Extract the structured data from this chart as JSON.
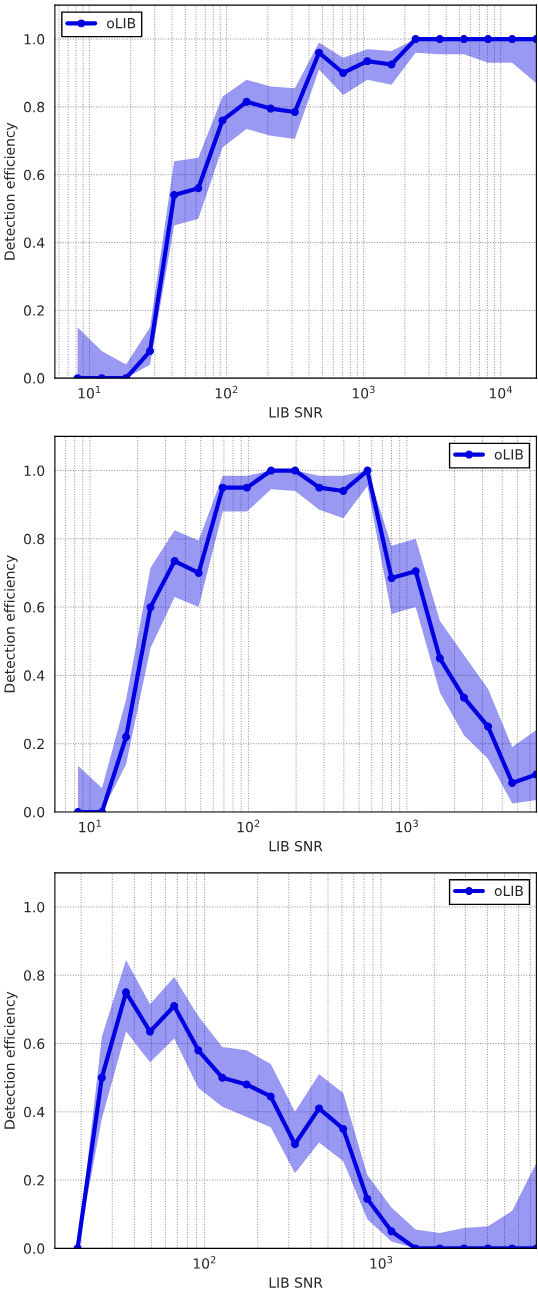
{
  "chart_data": [
    {
      "type": "line",
      "xlabel": "LIB SNR",
      "ylabel": "Detection efficiency",
      "log": "x",
      "grid": true,
      "legend": "top left",
      "marker": "circle",
      "x": [
        8.2,
        12.3,
        18.5,
        27.7,
        41.5,
        62.3,
        93.4,
        140,
        210,
        315,
        473,
        709,
        1064,
        1596,
        2394,
        3591,
        5387,
        8080,
        12120,
        18180
      ],
      "xlim": [
        5.6,
        18200
      ],
      "xticks": [
        {
          "value": 10,
          "label": "10$^{1}$"
        },
        {
          "value": 100,
          "label": "10$^{2}$"
        },
        {
          "value": 1000,
          "label": "10$^{3}$"
        },
        {
          "value": 10000,
          "label": "10$^{4}$"
        }
      ],
      "ylim": [
        0,
        1.1
      ],
      "yticks": [
        {
          "value": 0,
          "label": "0.0"
        },
        {
          "value": 0.2,
          "label": "0.2"
        },
        {
          "value": 0.4,
          "label": "0.4"
        },
        {
          "value": 0.6,
          "label": "0.6"
        },
        {
          "value": 0.8,
          "label": "0.8"
        },
        {
          "value": 1.0,
          "label": "1.0"
        }
      ],
      "series": [
        {
          "name": "oLIB",
          "color": "#0000e0",
          "values": [
            0,
            0,
            0,
            0.08,
            0.54,
            0.56,
            0.76,
            0.815,
            0.795,
            0.785,
            0.96,
            0.9,
            0.935,
            0.925,
            1,
            1,
            1,
            1,
            1,
            1
          ],
          "upper": [
            0.15,
            0.08,
            0.04,
            0.15,
            0.64,
            0.65,
            0.83,
            0.88,
            0.86,
            0.855,
            0.99,
            0.945,
            0.97,
            0.965,
            1,
            1,
            1,
            1,
            1,
            1
          ],
          "lower": [
            0,
            0,
            0,
            0.04,
            0.45,
            0.47,
            0.68,
            0.735,
            0.715,
            0.705,
            0.91,
            0.835,
            0.88,
            0.865,
            0.96,
            0.955,
            0.955,
            0.93,
            0.93,
            0.87
          ]
        }
      ]
    },
    {
      "type": "line",
      "xlabel": "LIB SNR",
      "ylabel": "Detection efficiency",
      "log": "x",
      "grid": true,
      "legend": "top right",
      "marker": "circle",
      "x": [
        8.4,
        11.9,
        16.9,
        24.1,
        34.2,
        48.5,
        68.8,
        97.8,
        139,
        197,
        280,
        397,
        564,
        801,
        1137,
        1615,
        2293,
        3256,
        4624,
        6566
      ],
      "xlim": [
        6.0,
        6570
      ],
      "xticks": [
        {
          "value": 10,
          "label": "10$^{1}$"
        },
        {
          "value": 100,
          "label": "10$^{2}$"
        },
        {
          "value": 1000,
          "label": "10$^{3}$"
        }
      ],
      "ylim": [
        0,
        1.1
      ],
      "yticks": [
        {
          "value": 0,
          "label": "0.0"
        },
        {
          "value": 0.2,
          "label": "0.2"
        },
        {
          "value": 0.4,
          "label": "0.4"
        },
        {
          "value": 0.6,
          "label": "0.6"
        },
        {
          "value": 0.8,
          "label": "0.8"
        },
        {
          "value": 1.0,
          "label": "1.0"
        }
      ],
      "series": [
        {
          "name": "oLIB",
          "color": "#0000e0",
          "values": [
            0,
            0,
            0.22,
            0.6,
            0.735,
            0.7,
            0.95,
            0.95,
            1,
            1,
            0.95,
            0.94,
            1,
            0.685,
            0.705,
            0.45,
            0.335,
            0.25,
            0.085,
            0.11
          ],
          "upper": [
            0.135,
            0.07,
            0.33,
            0.715,
            0.825,
            0.795,
            0.985,
            0.985,
            1,
            1,
            0.985,
            0.985,
            1,
            0.78,
            0.8,
            0.56,
            0.46,
            0.36,
            0.19,
            0.24
          ],
          "lower": [
            0,
            0,
            0.14,
            0.48,
            0.63,
            0.6,
            0.88,
            0.88,
            0.945,
            0.94,
            0.885,
            0.86,
            0.955,
            0.58,
            0.6,
            0.35,
            0.225,
            0.155,
            0.025,
            0.035
          ]
        }
      ]
    },
    {
      "type": "line",
      "xlabel": "LIB SNR",
      "ylabel": "Detection efficiency",
      "log": "x",
      "grid": true,
      "legend": "top right",
      "marker": "circle",
      "x": [
        19.1,
        26.2,
        35.9,
        49.1,
        67.3,
        92.2,
        126,
        173,
        237,
        325,
        445,
        610,
        835,
        1144,
        1568,
        2148,
        2943,
        4031,
        5523,
        7566
      ],
      "xlim": [
        14.2,
        7570
      ],
      "xticks": [
        {
          "value": 100,
          "label": "10$^{2}$"
        },
        {
          "value": 1000,
          "label": "10$^{3}$"
        }
      ],
      "ylim": [
        0,
        1.1
      ],
      "yticks": [
        {
          "value": 0,
          "label": "0.0"
        },
        {
          "value": 0.2,
          "label": "0.2"
        },
        {
          "value": 0.4,
          "label": "0.4"
        },
        {
          "value": 0.6,
          "label": "0.6"
        },
        {
          "value": 0.8,
          "label": "0.8"
        },
        {
          "value": 1.0,
          "label": "1.0"
        }
      ],
      "series": [
        {
          "name": "oLIB",
          "color": "#0000e0",
          "values": [
            0,
            0.5,
            0.75,
            0.635,
            0.71,
            0.58,
            0.5,
            0.48,
            0.445,
            0.305,
            0.41,
            0.35,
            0.145,
            0.05,
            0,
            0,
            0,
            0,
            0,
            0
          ],
          "upper": [
            0,
            0.62,
            0.845,
            0.715,
            0.795,
            0.68,
            0.59,
            0.58,
            0.54,
            0.4,
            0.51,
            0.455,
            0.215,
            0.12,
            0.055,
            0.045,
            0.06,
            0.065,
            0.11,
            0.25
          ],
          "lower": [
            0,
            0.38,
            0.635,
            0.545,
            0.615,
            0.47,
            0.415,
            0.385,
            0.355,
            0.22,
            0.31,
            0.255,
            0.085,
            0.02,
            0,
            0,
            0,
            0,
            0,
            0
          ]
        }
      ]
    }
  ]
}
